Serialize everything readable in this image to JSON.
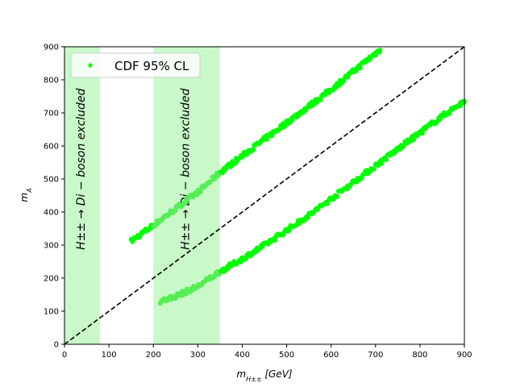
{
  "chart_data": {
    "type": "scatter",
    "title": "",
    "xlabel": "m_{H±±} [GeV]",
    "xlabel_main": "m",
    "xlabel_sub": "H±±",
    "xlabel_unit": " [GeV]",
    "ylabel": "m_A",
    "ylabel_main": "m",
    "ylabel_sub": "A",
    "xlim": [
      0,
      900
    ],
    "ylim": [
      0,
      900
    ],
    "xticks": [
      0,
      100,
      200,
      300,
      400,
      500,
      600,
      700,
      800,
      900
    ],
    "yticks": [
      0,
      100,
      200,
      300,
      400,
      500,
      600,
      700,
      800,
      900
    ],
    "grid": false,
    "legend": {
      "placement": "top-left",
      "entries": [
        "CDF 95% CL"
      ]
    },
    "colors": {
      "points": "#00ff00",
      "points_faded": "#55ee55",
      "band": "#c9f9c9",
      "reference_line": "#000000"
    },
    "excluded_bands": [
      {
        "x_range": [
          0,
          80
        ],
        "label": "H±± → Di − boson excluded"
      },
      {
        "x_range": [
          200,
          350
        ],
        "label": "H±± → Di − boson excluded"
      }
    ],
    "reference_line": {
      "style": "dashed",
      "points": [
        [
          0,
          0
        ],
        [
          900,
          900
        ]
      ]
    },
    "series": [
      {
        "name": "CDF 95% CL",
        "branches": [
          {
            "x": [
              150,
              200,
              250,
              300,
              350,
              400,
              450,
              500,
              550,
              600,
              650,
              700,
              710
            ],
            "y": [
              312,
              360,
              410,
              460,
              520,
              570,
              620,
              670,
              720,
              770,
              825,
              880,
              890
            ]
          },
          {
            "x": [
              215,
              250,
              300,
              350,
              400,
              450,
              500,
              550,
              600,
              650,
              700,
              750,
              800,
              850,
              900
            ],
            "y": [
              130,
              145,
              175,
              220,
              258,
              300,
              345,
              390,
              440,
              490,
              540,
              590,
              640,
              690,
              735
            ]
          }
        ]
      }
    ]
  }
}
